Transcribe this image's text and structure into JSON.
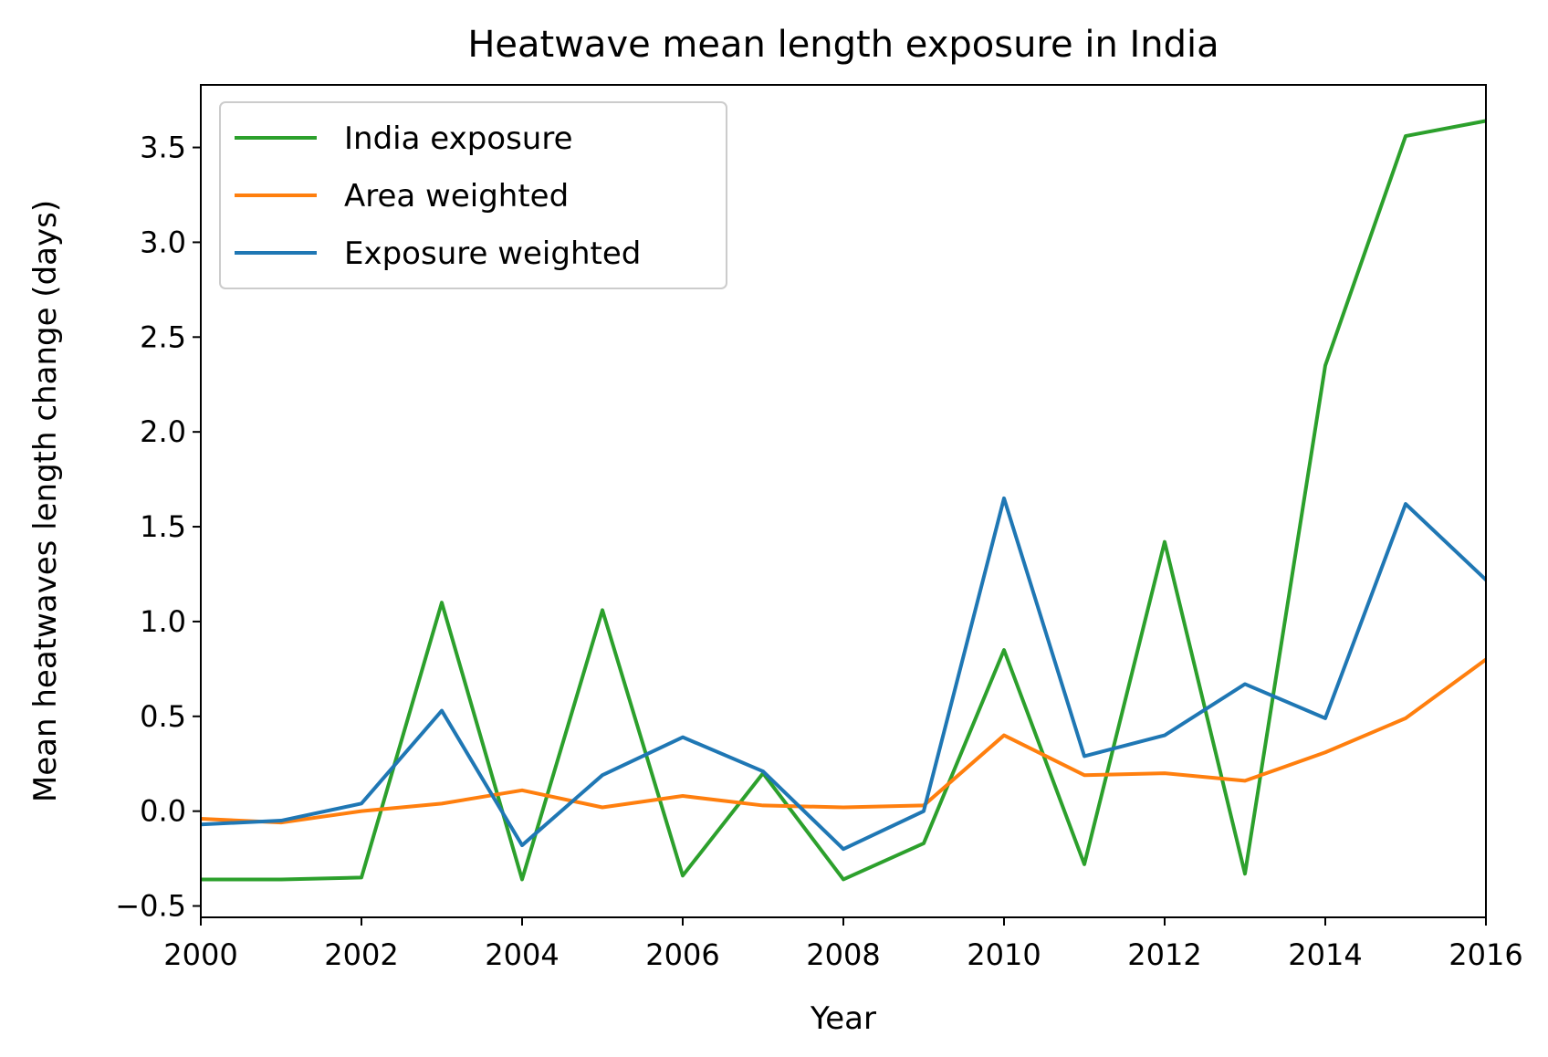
{
  "chart_data": {
    "type": "line",
    "title": "Heatwave mean length exposure in India",
    "xlabel": "Year",
    "ylabel": "Mean heatwaves length change (days)",
    "xlim": [
      2000,
      2016
    ],
    "ylim": [
      -0.56,
      3.83
    ],
    "xticks": [
      2000,
      2002,
      2004,
      2006,
      2008,
      2010,
      2012,
      2014,
      2016
    ],
    "yticks": [
      -0.5,
      0.0,
      0.5,
      1.0,
      1.5,
      2.0,
      2.5,
      3.0,
      3.5
    ],
    "ytick_labels": [
      "−0.5",
      "0.0",
      "0.5",
      "1.0",
      "1.5",
      "2.0",
      "2.5",
      "3.0",
      "3.5"
    ],
    "grid": false,
    "legend_position": "top-left",
    "x": [
      2000,
      2001,
      2002,
      2003,
      2004,
      2005,
      2006,
      2007,
      2008,
      2009,
      2010,
      2011,
      2012,
      2013,
      2014,
      2015,
      2016
    ],
    "series": [
      {
        "name": "India exposure",
        "color": "#2ca02c",
        "values": [
          -0.36,
          -0.36,
          -0.35,
          1.1,
          -0.36,
          1.06,
          -0.34,
          0.2,
          -0.36,
          -0.17,
          0.85,
          -0.28,
          1.42,
          -0.33,
          2.35,
          3.56,
          3.64
        ]
      },
      {
        "name": "Area weighted",
        "color": "#ff7f0e",
        "values": [
          -0.04,
          -0.06,
          0.0,
          0.04,
          0.11,
          0.02,
          0.08,
          0.03,
          0.02,
          0.03,
          0.4,
          0.19,
          0.2,
          0.16,
          0.31,
          0.49,
          0.8
        ]
      },
      {
        "name": "Exposure weighted",
        "color": "#1f77b4",
        "values": [
          -0.07,
          -0.05,
          0.04,
          0.53,
          -0.18,
          0.19,
          0.39,
          0.21,
          -0.2,
          0.0,
          1.65,
          0.29,
          0.4,
          0.67,
          0.49,
          1.62,
          1.22
        ]
      }
    ]
  }
}
